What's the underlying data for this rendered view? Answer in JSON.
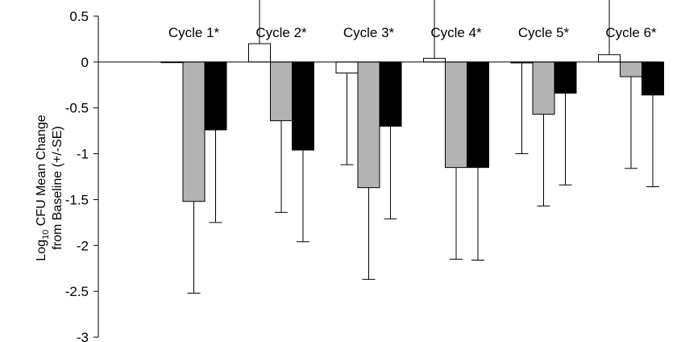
{
  "chart_data": {
    "type": "bar",
    "categories": [
      "Cycle 1*",
      "Cycle 2*",
      "Cycle 3*",
      "Cycle 4*",
      "Cycle 5*",
      "Cycle 6*"
    ],
    "series": [
      {
        "fill": "#ffffff",
        "values": [
          0,
          0.2,
          -0.12,
          0.04,
          -0.01,
          0.08
        ],
        "errors": [
          0,
          0.99,
          1.0,
          1.0,
          0.99,
          1.0
        ]
      },
      {
        "fill": "#b3b3b3",
        "values": [
          -1.52,
          -0.64,
          -1.37,
          -1.15,
          -0.57,
          -0.16
        ],
        "errors": [
          1.0,
          1.0,
          1.0,
          1.0,
          1.0,
          1.0
        ]
      },
      {
        "fill": "#000000",
        "values": [
          -0.74,
          -0.96,
          -0.7,
          -1.15,
          -0.34,
          -0.36
        ],
        "errors": [
          1.01,
          1.0,
          1.01,
          1.01,
          1.0,
          1.0
        ]
      }
    ],
    "error_bar_direction": "down for negative values, up for positive values",
    "ylabel": {
      "line1_main": "Log",
      "line1_sub": "10",
      "line1_rest": " CFU Mean Change",
      "line2": "from Baseline  (+/-SE)"
    },
    "ylim": [
      -3,
      0.5
    ],
    "yticks": [
      {
        "value": 0.5,
        "label": "0.5"
      },
      {
        "value": 0,
        "label": "0"
      },
      {
        "value": -0.5,
        "label": "-0.5"
      },
      {
        "value": -1,
        "label": "-1"
      },
      {
        "value": -1.5,
        "label": "-1.5"
      },
      {
        "value": -2,
        "label": "-2"
      },
      {
        "value": -2.5,
        "label": "-2.5"
      },
      {
        "value": -3,
        "label": "-3"
      }
    ],
    "category_labels_position": "top",
    "grid": false,
    "legend": "none"
  }
}
